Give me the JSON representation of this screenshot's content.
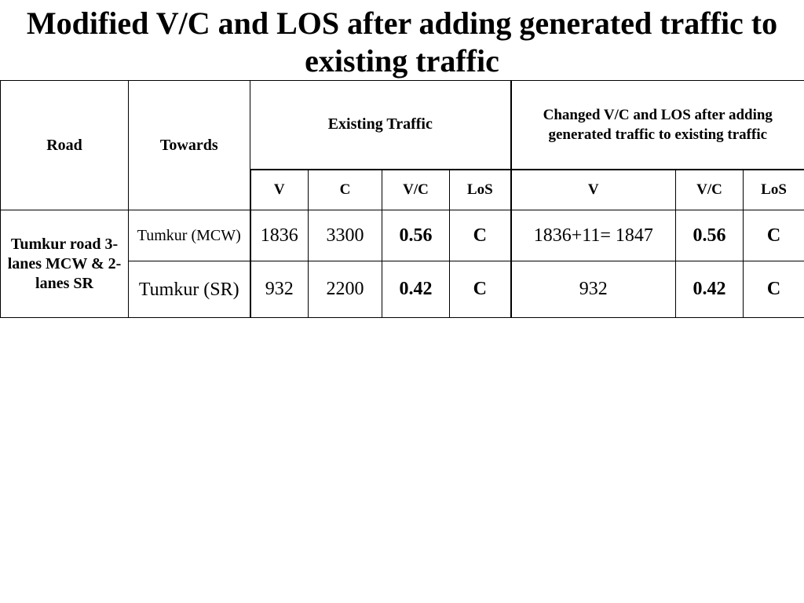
{
  "title": "Modified V/C and LOS after adding generated traffic to existing traffic",
  "table": {
    "headers": {
      "road": "Road",
      "towards": "Towards",
      "existing_traffic": "Existing Traffic",
      "changed": "Changed V/C and LOS after adding generated traffic to existing traffic",
      "existing_cols": [
        "V",
        "C",
        "V/C",
        "LoS"
      ],
      "changed_cols": [
        "V",
        "V/C",
        "LoS"
      ]
    },
    "road_name": "Tumkur road 3-lanes MCW & 2-lanes SR",
    "rows": [
      {
        "towards": "Tumkur (MCW)",
        "v": "1836",
        "c": "3300",
        "vc": "0.56",
        "los": "C",
        "changed_v": "1836+11= 1847",
        "changed_vc": "0.56",
        "changed_los": "C"
      },
      {
        "towards": "Tumkur (SR)",
        "v": "932",
        "c": "2200",
        "vc": "0.42",
        "los": "C",
        "changed_v": "932",
        "changed_vc": "0.42",
        "changed_los": "C"
      }
    ]
  }
}
